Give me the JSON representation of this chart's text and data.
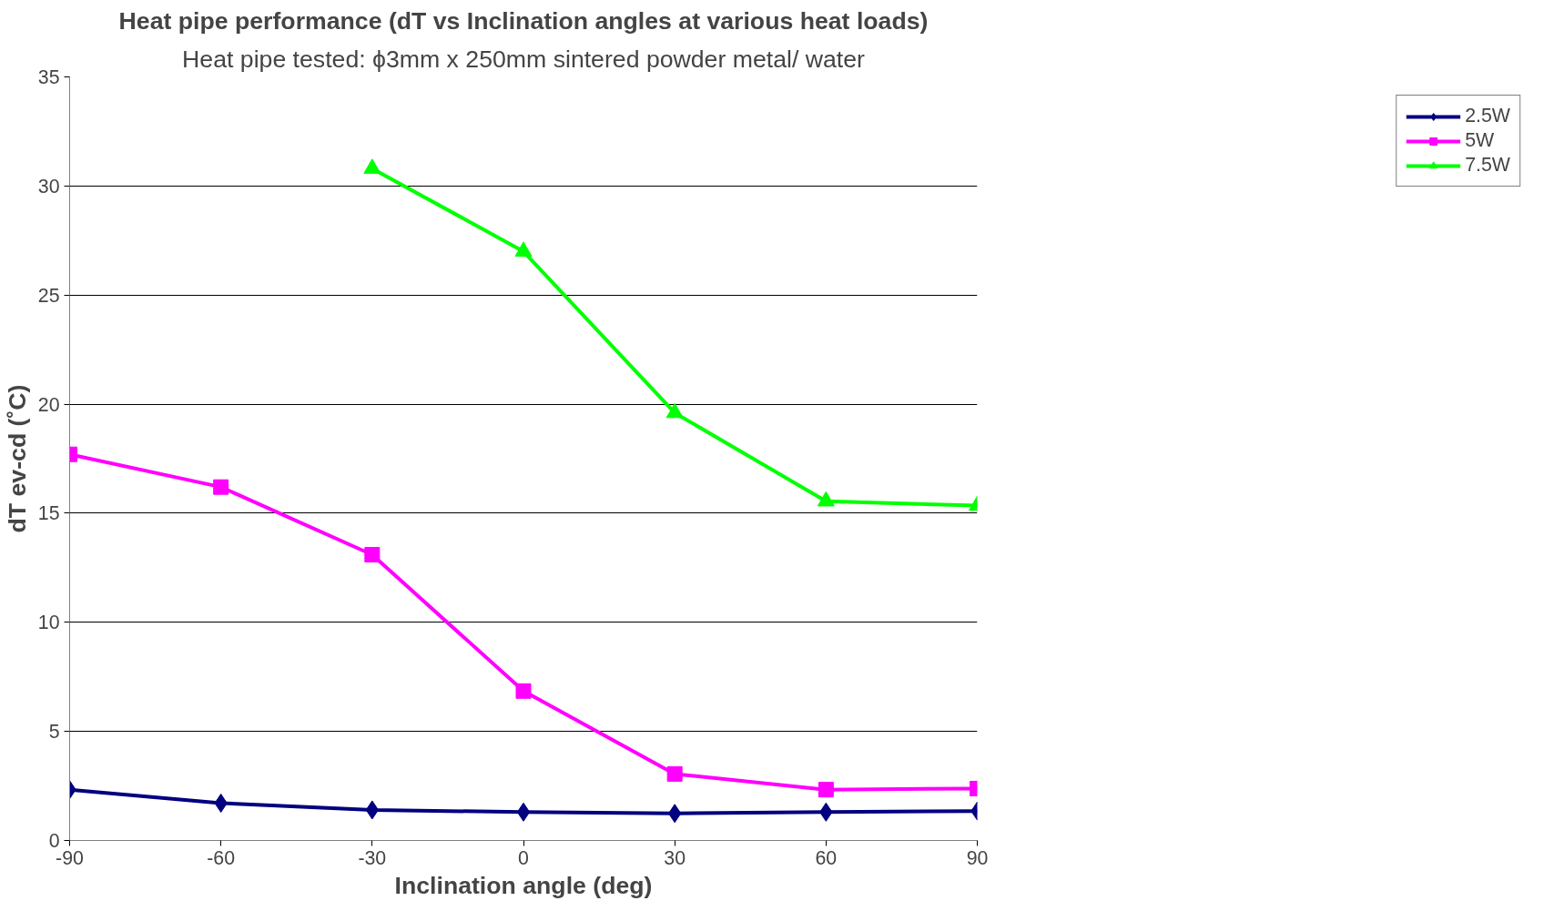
{
  "chart_data": {
    "type": "line",
    "title": "Heat pipe performance (dT vs Inclination angles at various heat loads)",
    "subtitle": "Heat pipe tested: ϕ3mm x 250mm sintered powder metal/ water",
    "xlabel": "Inclination angle (deg)",
    "ylabel": "dT ev-cd (˚C)",
    "x": [
      -90,
      -60,
      -30,
      0,
      30,
      60,
      90
    ],
    "series": [
      {
        "name": "2.5W",
        "color": "#000080",
        "marker": "diamond",
        "values": [
          2.33,
          1.71,
          1.4,
          1.3,
          1.24,
          1.3,
          1.35
        ]
      },
      {
        "name": "5W",
        "color": "#ff00ff",
        "marker": "square",
        "values": [
          17.7,
          16.2,
          13.1,
          6.85,
          3.05,
          2.33,
          2.38
        ]
      },
      {
        "name": "7.5W",
        "color": "#00ff00",
        "marker": "triangle",
        "values": [
          null,
          null,
          30.8,
          27.0,
          19.6,
          15.55,
          15.35
        ]
      }
    ],
    "xlim": [
      -90,
      90
    ],
    "xticks": [
      -90,
      -60,
      -30,
      0,
      30,
      60,
      90
    ],
    "ylim": [
      0,
      35
    ],
    "yticks": [
      0,
      5,
      10,
      15,
      20,
      25,
      30,
      35
    ],
    "grid": "y",
    "legend": "right",
    "line_style": "solid"
  }
}
